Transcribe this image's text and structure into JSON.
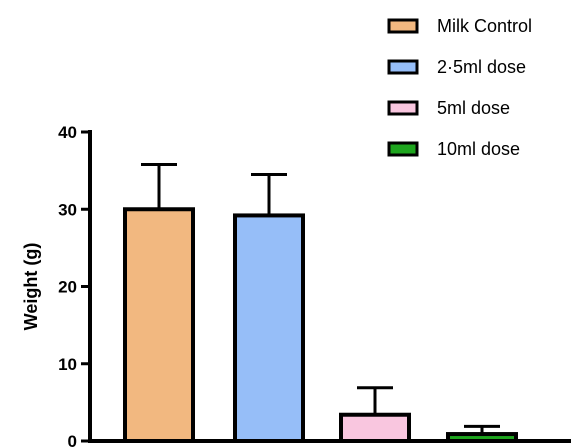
{
  "chart_data": {
    "type": "bar",
    "ylabel": "Weight (g)",
    "xlabel": "",
    "ylim": [
      0,
      40
    ],
    "yticks": [
      0,
      10,
      20,
      30,
      40
    ],
    "grid": false,
    "legend_position": "top-right",
    "series": [
      {
        "name": "Milk Control",
        "value": 30,
        "error": 5.8,
        "color": "#F2B880"
      },
      {
        "name": "2·5ml dose",
        "value": 29.2,
        "error": 5.3,
        "color": "#96BEF8"
      },
      {
        "name": "5ml dose",
        "value": 3.4,
        "error": 3.5,
        "color": "#F9C6DF"
      },
      {
        "name": "10ml dose",
        "value": 0.9,
        "error": 1.0,
        "color": "#1EA51E"
      }
    ]
  }
}
